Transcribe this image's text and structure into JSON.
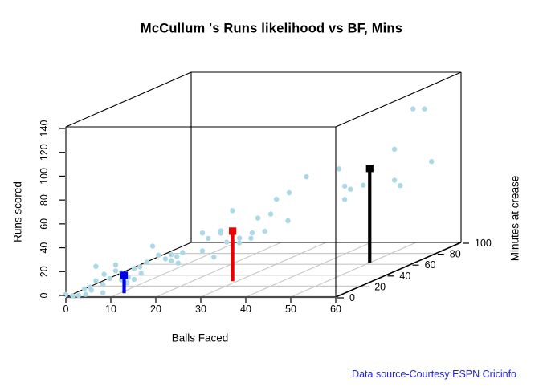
{
  "title": "McCullum 's Runs likelihood vs BF, Mins",
  "footer": "Data source-Courtesy:ESPN Cricinfo",
  "colors": {
    "point": "#ADD8E6",
    "grid": "#C9C9C9",
    "box": "#000000",
    "x_axis": "#4a4a4a",
    "footer_text": "#2222EE",
    "highlight_blue": "#0000EE",
    "highlight_red": "#EE0000",
    "highlight_black": "#000000"
  },
  "chart_data": {
    "type": "scatter",
    "subtype": "scatter3d",
    "title": "McCullum 's Runs likelihood vs BF, Mins",
    "xlabel": "Balls Faced",
    "ylabel": "Runs scored",
    "zlabel": "Minutes at crease",
    "xlim": [
      0,
      60
    ],
    "ylim": [
      0,
      140
    ],
    "zlim": [
      0,
      100
    ],
    "x_ticks": [
      0,
      10,
      20,
      30,
      40,
      50,
      60
    ],
    "y_ticks": [
      0,
      20,
      40,
      60,
      80,
      100,
      120,
      140
    ],
    "z_ticks": [
      0,
      20,
      40,
      60,
      80,
      100
    ],
    "grid": true,
    "legend": "none",
    "points_series_name": "innings (bf, runs, mins)",
    "points": [
      [
        0,
        2,
        0
      ],
      [
        1,
        0,
        2
      ],
      [
        2,
        0,
        3
      ],
      [
        3,
        0,
        5
      ],
      [
        3,
        5,
        4
      ],
      [
        4,
        6,
        5
      ],
      [
        4,
        3,
        6
      ],
      [
        5,
        11,
        6
      ],
      [
        6,
        0,
        8
      ],
      [
        6,
        7,
        8
      ],
      [
        5,
        23,
        6
      ],
      [
        6,
        15,
        9
      ],
      [
        7,
        11,
        10
      ],
      [
        8,
        17,
        11
      ],
      [
        8,
        22,
        11
      ],
      [
        9,
        9,
        12
      ],
      [
        9,
        15,
        12
      ],
      [
        10,
        6,
        13
      ],
      [
        10,
        10,
        14
      ],
      [
        11,
        8,
        15
      ],
      [
        11,
        17,
        15
      ],
      [
        12,
        18,
        16
      ],
      [
        12,
        12,
        17
      ],
      [
        13,
        21,
        18
      ],
      [
        14,
        34,
        19
      ],
      [
        15,
        26,
        20
      ],
      [
        16,
        22,
        22
      ],
      [
        17,
        25,
        23
      ],
      [
        17,
        20,
        23
      ],
      [
        18,
        23,
        24
      ],
      [
        18,
        17,
        25
      ],
      [
        19,
        26,
        25
      ],
      [
        22,
        40,
        30
      ],
      [
        23,
        35,
        31
      ],
      [
        22,
        25,
        30
      ],
      [
        24,
        19,
        32
      ],
      [
        25,
        40,
        34
      ],
      [
        25,
        38,
        34
      ],
      [
        26,
        30,
        35
      ],
      [
        27,
        56,
        36
      ],
      [
        28,
        32,
        38
      ],
      [
        28,
        28,
        38
      ],
      [
        30,
        31,
        40
      ],
      [
        30,
        35,
        41
      ],
      [
        31,
        47,
        42
      ],
      [
        32,
        35,
        44
      ],
      [
        33,
        49,
        45
      ],
      [
        34,
        61,
        46
      ],
      [
        36,
        42,
        48
      ],
      [
        36,
        65,
        49
      ],
      [
        39,
        77,
        52
      ],
      [
        44,
        80,
        60
      ],
      [
        45,
        65,
        61
      ],
      [
        46,
        62,
        62
      ],
      [
        45,
        54,
        61
      ],
      [
        48,
        64,
        65
      ],
      [
        53,
        65,
        72
      ],
      [
        54,
        60,
        73
      ],
      [
        53,
        91,
        72
      ],
      [
        59,
        77,
        80
      ],
      [
        56,
        123,
        76
      ],
      [
        58,
        122,
        78
      ]
    ],
    "highlights": [
      {
        "name": "blue-likelihood-marker",
        "color": "#0000EE",
        "bf": 11,
        "runs": 15,
        "mins": 7
      },
      {
        "name": "red-likelihood-marker",
        "color": "#EE0000",
        "bf": 29,
        "runs": 42,
        "mins": 29
      },
      {
        "name": "black-likelihood-marker",
        "color": "#000000",
        "bf": 50,
        "runs": 79,
        "mins": 63
      }
    ]
  }
}
